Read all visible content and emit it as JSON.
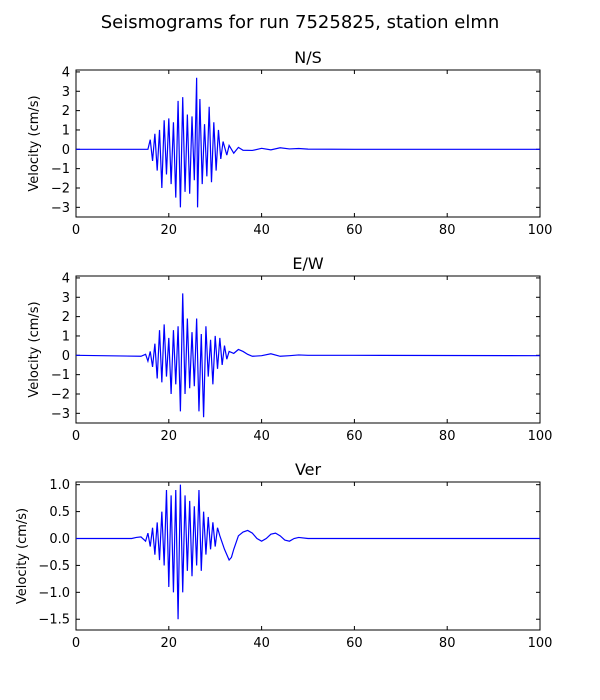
{
  "figure": {
    "title": "Seismograms for run 7525825, station elmn"
  },
  "chart_data": [
    {
      "type": "line",
      "title": "N/S",
      "xlabel": "",
      "ylabel": "Velocity (cm/s)",
      "xlim": [
        0,
        100
      ],
      "ylim": [
        -3.5,
        4.1
      ],
      "xticks": [
        0,
        20,
        40,
        60,
        80,
        100
      ],
      "yticks": [
        -3,
        -2,
        -1,
        0,
        1,
        2,
        3,
        4
      ],
      "grid": false,
      "color": "#0000ff",
      "series": [
        {
          "values": [
            [
              0,
              0
            ],
            [
              15.5,
              0
            ],
            [
              16,
              0.5
            ],
            [
              16.5,
              -0.6
            ],
            [
              17,
              0.8
            ],
            [
              17.5,
              -1.1
            ],
            [
              18,
              1.0
            ],
            [
              18.5,
              -2.0
            ],
            [
              19,
              1.5
            ],
            [
              19.5,
              -1.3
            ],
            [
              20,
              1.6
            ],
            [
              20.5,
              -1.8
            ],
            [
              21,
              1.4
            ],
            [
              21.5,
              -2.5
            ],
            [
              22,
              2.5
            ],
            [
              22.5,
              -3.0
            ],
            [
              23,
              2.7
            ],
            [
              23.5,
              -2.2
            ],
            [
              24,
              1.8
            ],
            [
              24.5,
              -2.3
            ],
            [
              25,
              1.7
            ],
            [
              25.5,
              -1.6
            ],
            [
              26,
              3.7
            ],
            [
              26.2,
              -3.0
            ],
            [
              26.7,
              2.6
            ],
            [
              27.2,
              -1.8
            ],
            [
              27.7,
              1.3
            ],
            [
              28.2,
              -1.4
            ],
            [
              28.7,
              2.2
            ],
            [
              29.2,
              -1.7
            ],
            [
              29.7,
              1.4
            ],
            [
              30.2,
              -1.1
            ],
            [
              30.7,
              1.0
            ],
            [
              31.2,
              -0.5
            ],
            [
              31.7,
              0.4
            ],
            [
              32.5,
              -0.3
            ],
            [
              33,
              0.2
            ],
            [
              34,
              -0.2
            ],
            [
              35,
              0.1
            ],
            [
              36,
              -0.05
            ],
            [
              38,
              -0.06
            ],
            [
              40,
              0.05
            ],
            [
              42,
              -0.03
            ],
            [
              44,
              0.08
            ],
            [
              46,
              0.02
            ],
            [
              48,
              0.04
            ],
            [
              50,
              0.01
            ],
            [
              60,
              0
            ],
            [
              100,
              0
            ]
          ]
        }
      ]
    },
    {
      "type": "line",
      "title": "E/W",
      "xlabel": "",
      "ylabel": "Velocity (cm/s)",
      "xlim": [
        0,
        100
      ],
      "ylim": [
        -3.5,
        4.1
      ],
      "xticks": [
        0,
        20,
        40,
        60,
        80,
        100
      ],
      "yticks": [
        -3,
        -2,
        -1,
        0,
        1,
        2,
        3,
        4
      ],
      "grid": false,
      "color": "#0000ff",
      "series": [
        {
          "values": [
            [
              0,
              0
            ],
            [
              14,
              -0.05
            ],
            [
              15,
              0.05
            ],
            [
              15.5,
              -0.3
            ],
            [
              16,
              0.2
            ],
            [
              16.5,
              -0.6
            ],
            [
              17,
              0.6
            ],
            [
              17.5,
              -1.2
            ],
            [
              18,
              1.3
            ],
            [
              18.5,
              -1.4
            ],
            [
              19,
              1.6
            ],
            [
              19.5,
              -1.1
            ],
            [
              20,
              0.9
            ],
            [
              20.5,
              -2.0
            ],
            [
              21,
              1.3
            ],
            [
              21.5,
              -1.5
            ],
            [
              22,
              1.5
            ],
            [
              22.5,
              -2.9
            ],
            [
              23,
              3.2
            ],
            [
              23.5,
              -2.0
            ],
            [
              24,
              1.9
            ],
            [
              24.5,
              -1.7
            ],
            [
              25,
              1.2
            ],
            [
              25.5,
              -1.6
            ],
            [
              26,
              1.9
            ],
            [
              26.5,
              -2.9
            ],
            [
              27,
              1.1
            ],
            [
              27.5,
              -3.2
            ],
            [
              28,
              1.5
            ],
            [
              28.5,
              -1.1
            ],
            [
              29,
              0.8
            ],
            [
              29.5,
              -1.5
            ],
            [
              30,
              1.0
            ],
            [
              30.5,
              -0.7
            ],
            [
              31,
              0.9
            ],
            [
              31.5,
              -0.5
            ],
            [
              32,
              0.5
            ],
            [
              32.5,
              -0.2
            ],
            [
              33,
              0.2
            ],
            [
              34,
              0.1
            ],
            [
              35,
              0.3
            ],
            [
              36,
              0.2
            ],
            [
              37,
              0.05
            ],
            [
              38,
              -0.05
            ],
            [
              40,
              -0.02
            ],
            [
              42,
              0.08
            ],
            [
              44,
              -0.05
            ],
            [
              46,
              -0.02
            ],
            [
              48,
              0.02
            ],
            [
              50,
              0
            ],
            [
              60,
              0
            ],
            [
              100,
              -0.02
            ]
          ]
        }
      ]
    },
    {
      "type": "line",
      "title": "Ver",
      "xlabel": "",
      "ylabel": "Velocity (cm/s)",
      "xlim": [
        0,
        100
      ],
      "ylim": [
        -1.7,
        1.05
      ],
      "xticks": [
        0,
        20,
        40,
        60,
        80,
        100
      ],
      "yticks": [
        -1.5,
        -1.0,
        -0.5,
        0.0,
        0.5,
        1.0
      ],
      "grid": false,
      "color": "#0000ff",
      "series": [
        {
          "values": [
            [
              0,
              0
            ],
            [
              12,
              0
            ],
            [
              13,
              0.02
            ],
            [
              14,
              0.03
            ],
            [
              15,
              -0.05
            ],
            [
              15.5,
              0.1
            ],
            [
              16,
              -0.15
            ],
            [
              16.5,
              0.2
            ],
            [
              17,
              -0.3
            ],
            [
              17.5,
              0.3
            ],
            [
              18,
              -0.4
            ],
            [
              18.5,
              0.5
            ],
            [
              19,
              -0.5
            ],
            [
              19.5,
              0.9
            ],
            [
              20,
              -0.9
            ],
            [
              20.5,
              0.8
            ],
            [
              21,
              -1.0
            ],
            [
              21.5,
              0.9
            ],
            [
              22,
              -1.5
            ],
            [
              22.5,
              1.0
            ],
            [
              23,
              -1.0
            ],
            [
              23.5,
              0.8
            ],
            [
              24,
              -0.6
            ],
            [
              24.5,
              0.7
            ],
            [
              25,
              -0.7
            ],
            [
              25.5,
              0.6
            ],
            [
              26,
              -0.5
            ],
            [
              26.5,
              0.9
            ],
            [
              27,
              -0.6
            ],
            [
              27.5,
              0.5
            ],
            [
              28,
              -0.3
            ],
            [
              28.5,
              0.4
            ],
            [
              29,
              -0.2
            ],
            [
              29.5,
              0.3
            ],
            [
              30,
              -0.15
            ],
            [
              30.5,
              0.2
            ],
            [
              31,
              0.05
            ],
            [
              32,
              -0.2
            ],
            [
              33,
              -0.4
            ],
            [
              33.5,
              -0.35
            ],
            [
              34,
              -0.2
            ],
            [
              35,
              0.05
            ],
            [
              36,
              0.12
            ],
            [
              37,
              0.15
            ],
            [
              38,
              0.1
            ],
            [
              39,
              0.0
            ],
            [
              40,
              -0.05
            ],
            [
              41,
              0.0
            ],
            [
              42,
              0.08
            ],
            [
              43,
              0.1
            ],
            [
              44,
              0.05
            ],
            [
              45,
              -0.03
            ],
            [
              46,
              -0.05
            ],
            [
              47,
              0.0
            ],
            [
              48,
              0.02
            ],
            [
              50,
              0
            ],
            [
              100,
              0
            ]
          ]
        }
      ]
    }
  ]
}
